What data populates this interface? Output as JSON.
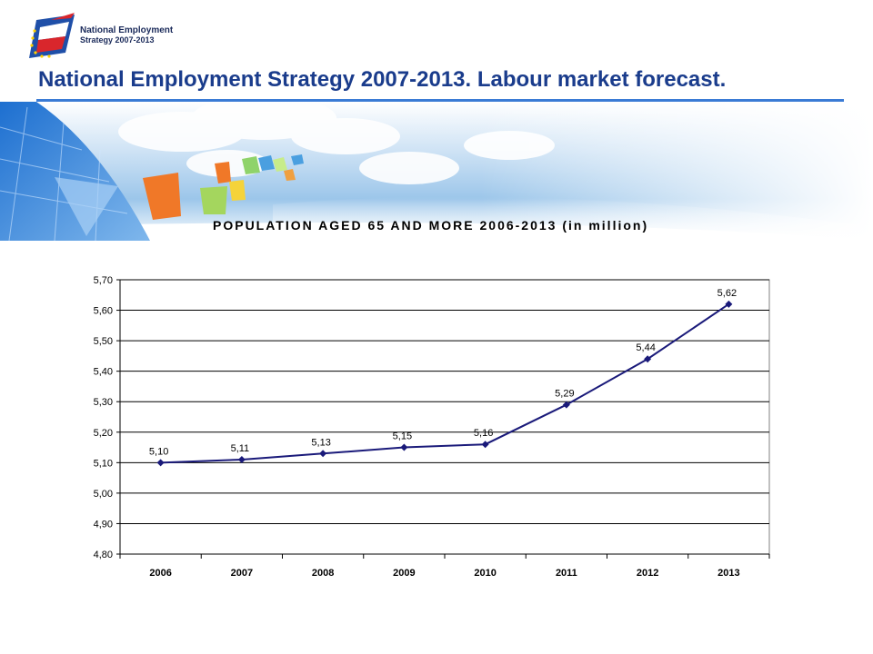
{
  "logo": {
    "line1": "National Employment",
    "line2": "Strategy 2007-2013"
  },
  "slide_title": "National Employment Strategy 2007-2013. Labour market forecast.",
  "colors": {
    "title": "#1a3c8c",
    "rule": "#3a7bd5",
    "series": "#1a1a7a",
    "grid": "#000000"
  },
  "chart_data": {
    "type": "line",
    "title": "POPULATION AGED 65 AND MORE 2006-2013 (in million)",
    "xlabel": "",
    "ylabel": "",
    "categories": [
      "2006",
      "2007",
      "2008",
      "2009",
      "2010",
      "2011",
      "2012",
      "2013"
    ],
    "values": [
      5.1,
      5.11,
      5.13,
      5.15,
      5.16,
      5.29,
      5.44,
      5.62
    ],
    "data_labels": [
      "5,10",
      "5,11",
      "5,13",
      "5,15",
      "5,16",
      "5,29",
      "5,44",
      "5,62"
    ],
    "ylim": [
      4.8,
      5.7
    ],
    "yticks": [
      4.8,
      4.9,
      5.0,
      5.1,
      5.2,
      5.3,
      5.4,
      5.5,
      5.6,
      5.7
    ],
    "ytick_labels": [
      "4,80",
      "4,90",
      "5,00",
      "5,10",
      "5,20",
      "5,30",
      "5,40",
      "5,50",
      "5,60",
      "5,70"
    ],
    "grid": true,
    "legend": "none",
    "marker": "diamond"
  }
}
